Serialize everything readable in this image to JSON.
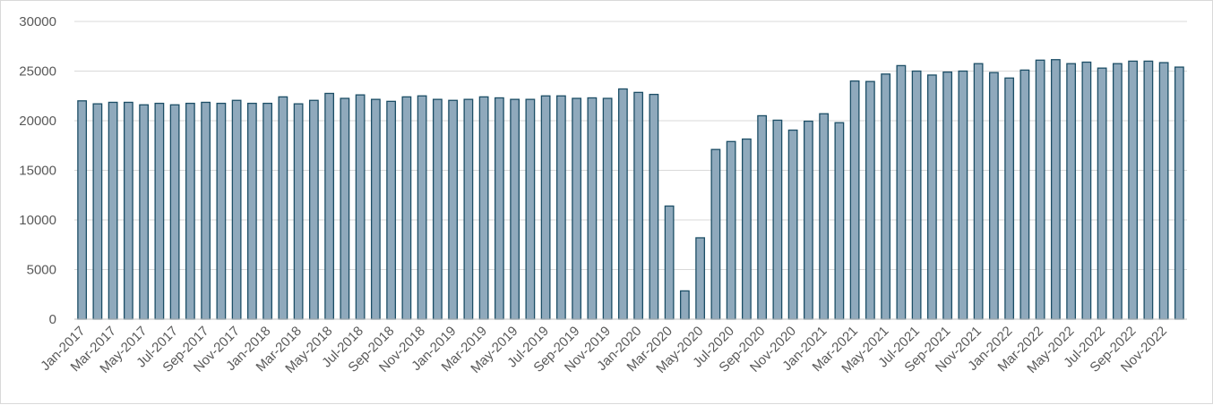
{
  "chart_data": {
    "type": "bar",
    "title": "",
    "xlabel": "",
    "ylabel": "",
    "ylim": [
      0,
      30000
    ],
    "yticks": [
      0,
      5000,
      10000,
      15000,
      20000,
      25000,
      30000
    ],
    "grid": true,
    "legend": "none",
    "bar_fill": "#8fa9bc",
    "bar_stroke": "#1c4e66",
    "categories": [
      "Jan-2017",
      "Feb-2017",
      "Mar-2017",
      "Apr-2017",
      "May-2017",
      "Jun-2017",
      "Jul-2017",
      "Aug-2017",
      "Sep-2017",
      "Oct-2017",
      "Nov-2017",
      "Dec-2017",
      "Jan-2018",
      "Feb-2018",
      "Mar-2018",
      "Apr-2018",
      "May-2018",
      "Jun-2018",
      "Jul-2018",
      "Aug-2018",
      "Sep-2018",
      "Oct-2018",
      "Nov-2018",
      "Dec-2018",
      "Jan-2019",
      "Feb-2019",
      "Mar-2019",
      "Apr-2019",
      "May-2019",
      "Jun-2019",
      "Jul-2019",
      "Aug-2019",
      "Sep-2019",
      "Oct-2019",
      "Nov-2019",
      "Dec-2019",
      "Jan-2020",
      "Feb-2020",
      "Mar-2020",
      "Apr-2020",
      "May-2020",
      "Jun-2020",
      "Jul-2020",
      "Aug-2020",
      "Sep-2020",
      "Oct-2020",
      "Nov-2020",
      "Dec-2020",
      "Jan-2021",
      "Feb-2021",
      "Mar-2021",
      "Apr-2021",
      "May-2021",
      "Jun-2021",
      "Jul-2021",
      "Aug-2021",
      "Sep-2021",
      "Oct-2021",
      "Nov-2021",
      "Dec-2021",
      "Jan-2022",
      "Feb-2022",
      "Mar-2022",
      "Apr-2022",
      "May-2022",
      "Jun-2022",
      "Jul-2022",
      "Aug-2022",
      "Sep-2022",
      "Oct-2022",
      "Nov-2022",
      "Dec-2022"
    ],
    "values": [
      22000,
      21700,
      21850,
      21850,
      21600,
      21750,
      21600,
      21750,
      21850,
      21750,
      22050,
      21750,
      21750,
      22400,
      21700,
      22050,
      22750,
      22250,
      22600,
      22150,
      21950,
      22400,
      22500,
      22150,
      22050,
      22150,
      22400,
      22300,
      22150,
      22150,
      22500,
      22500,
      22250,
      22300,
      22250,
      23200,
      22850,
      22650,
      11400,
      2850,
      8200,
      17100,
      17900,
      18150,
      20500,
      20050,
      19050,
      19950,
      20700,
      19800,
      24000,
      23950,
      24700,
      25550,
      25000,
      24600,
      24900,
      25000,
      25750,
      24850,
      24300,
      25100,
      26100,
      26150,
      25750,
      25900,
      25300,
      25750,
      26000,
      26000,
      25850,
      25400
    ]
  }
}
